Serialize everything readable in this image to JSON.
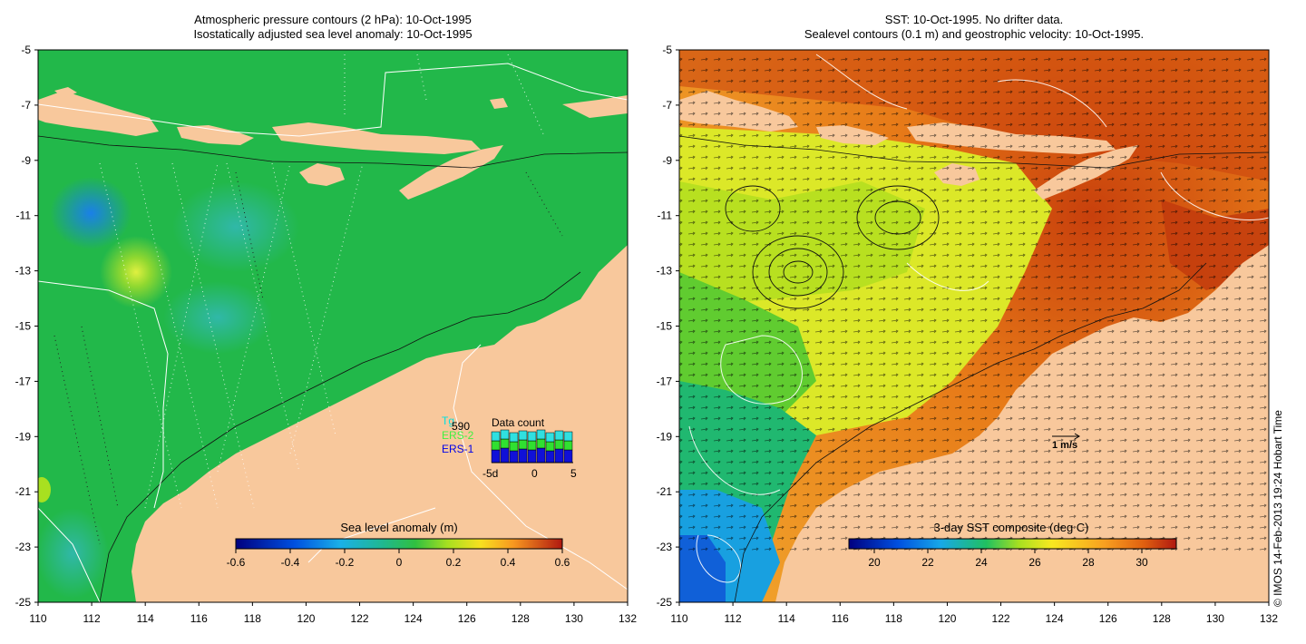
{
  "left_panel": {
    "title_line1": "Atmospheric pressure contours (2 hPa): 10-Oct-1995",
    "title_line2": "Isostatically adjusted sea level anomaly: 10-Oct-1995",
    "colorbar_label": "Sea level anomaly (m)",
    "colorbar_ticks": [
      "-0.6",
      "-0.4",
      "-0.2",
      "0",
      "0.2",
      "0.4",
      "0.6"
    ],
    "inset": {
      "label_tg": "Tg",
      "label_count": "590",
      "label_ers2": "ERS-2",
      "label_ers1": "ERS-1",
      "title": "Data count",
      "tick_left": "-5d",
      "tick_mid": "0",
      "tick_right": "5"
    }
  },
  "right_panel": {
    "title_line1": "SST: 10-Oct-1995. No drifter data.",
    "title_line2": "Sealevel contours (0.1 m) and geostrophic velocity: 10-Oct-1995.",
    "colorbar_label": "3-day SST composite (deg C)",
    "colorbar_ticks": [
      "20",
      "22",
      "24",
      "26",
      "28",
      "30"
    ],
    "velocity_scale_label": "1 m/s"
  },
  "axes": {
    "y_ticks": [
      "-5",
      "-7",
      "-9",
      "-11",
      "-13",
      "-15",
      "-17",
      "-19",
      "-21",
      "-23",
      "-25"
    ],
    "x_ticks": [
      "110",
      "112",
      "114",
      "116",
      "118",
      "120",
      "122",
      "124",
      "126",
      "128",
      "130",
      "132"
    ]
  },
  "credit": "© IMOS 14-Feb-2013 19:24 Hobart Time",
  "colors": {
    "land": "#f8c89c",
    "ocean_sla": "#22b84a",
    "sst_cool": "#1060d8",
    "sst_warm": "#d45e10"
  }
}
